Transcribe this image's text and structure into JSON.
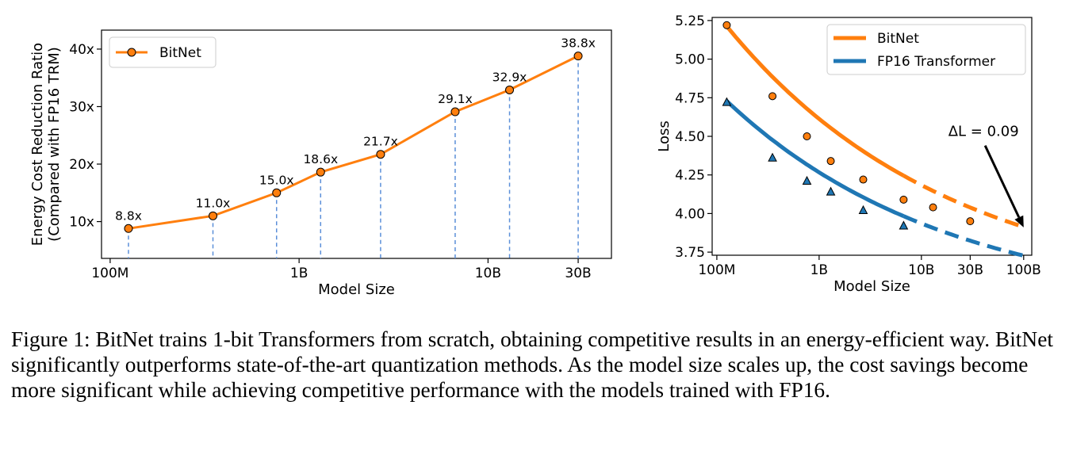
{
  "caption": "Figure 1: BitNet trains 1-bit Transformers from scratch, obtaining competitive results in an energy-efficient way. BitNet significantly outperforms state-of-the-art quantization methods. As the model size scales up, the cost savings become more significant while achieving competitive performance with the models trained with FP16.",
  "chart_data": [
    {
      "type": "line",
      "title": "",
      "xlabel": "Model Size",
      "ylabel": "Energy Cost Reduction Ratio",
      "ylabel2": "(Compared with FP16 TRM)",
      "xscale": "log",
      "xlim": [
        90000000,
        45000000000
      ],
      "ylim": [
        3.6,
        43.3
      ],
      "xticks": [
        {
          "value": 100000000,
          "label": "100M"
        },
        {
          "value": 1000000000,
          "label": "1B"
        },
        {
          "value": 10000000000,
          "label": "10B"
        },
        {
          "value": 30000000000,
          "label": "30B"
        }
      ],
      "yticks": [
        {
          "value": 10,
          "label": "10x"
        },
        {
          "value": 20,
          "label": "20x"
        },
        {
          "value": 30,
          "label": "30x"
        },
        {
          "value": 40,
          "label": "40x"
        }
      ],
      "legend": "top-left",
      "grid": false,
      "drop_lines": true,
      "series": [
        {
          "name": "BitNet",
          "color": "#ff7f0e",
          "marker": "circle",
          "points": [
            {
              "x": 125000000,
              "y": 8.8,
              "label": "8.8x"
            },
            {
              "x": 350000000,
              "y": 11.0,
              "label": "11.0x"
            },
            {
              "x": 760000000,
              "y": 15.0,
              "label": "15.0x"
            },
            {
              "x": 1300000000,
              "y": 18.6,
              "label": "18.6x"
            },
            {
              "x": 2700000000,
              "y": 21.7,
              "label": "21.7x"
            },
            {
              "x": 6700000000,
              "y": 29.1,
              "label": "29.1x"
            },
            {
              "x": 13000000000,
              "y": 32.9,
              "label": "32.9x"
            },
            {
              "x": 30000000000,
              "y": 38.8,
              "label": "38.8x"
            }
          ]
        }
      ]
    },
    {
      "type": "line",
      "title": "",
      "xlabel": "Model Size",
      "ylabel": "Loss",
      "xscale": "log",
      "xlim": [
        90000000,
        120000000000
      ],
      "ylim": [
        3.73,
        5.27
      ],
      "xticks": [
        {
          "value": 100000000,
          "label": "100M"
        },
        {
          "value": 1000000000,
          "label": "1B"
        },
        {
          "value": 10000000000,
          "label": "10B"
        },
        {
          "value": 30000000000,
          "label": "30B"
        },
        {
          "value": 100000000000,
          "label": "100B"
        }
      ],
      "yticks": [
        {
          "value": 3.75,
          "label": "3.75"
        },
        {
          "value": 4.0,
          "label": "4.00"
        },
        {
          "value": 4.25,
          "label": "4.25"
        },
        {
          "value": 4.5,
          "label": "4.50"
        },
        {
          "value": 4.75,
          "label": "4.75"
        },
        {
          "value": 5.0,
          "label": "5.00"
        },
        {
          "value": 5.25,
          "label": "5.25"
        }
      ],
      "legend": "top-right",
      "grid": false,
      "annotation": {
        "text": "ΔL = 0.09",
        "x_from": 42000000000,
        "y_from": 4.44,
        "x_to": 100000000000,
        "y_to": 3.91
      },
      "series": [
        {
          "name": "BitNet",
          "color": "#ff7f0e",
          "marker": "circle",
          "fit": {
            "a": 3.45,
            "b": 1.7633,
            "c": 0.2,
            "x0": 125000000
          },
          "solid_until": 6700000000,
          "points": [
            {
              "x": 125000000,
              "y": 5.22
            },
            {
              "x": 350000000,
              "y": 4.76
            },
            {
              "x": 760000000,
              "y": 4.5
            },
            {
              "x": 1300000000,
              "y": 4.34
            },
            {
              "x": 2700000000,
              "y": 4.22
            },
            {
              "x": 6700000000,
              "y": 4.09
            },
            {
              "x": 13000000000,
              "y": 4.04
            },
            {
              "x": 30000000000,
              "y": 3.95
            }
          ]
        },
        {
          "name": "FP16 Transformer",
          "color": "#1f77b4",
          "marker": "triangle",
          "fit": {
            "a": 3.37,
            "b": 1.3591,
            "c": 0.2,
            "x0": 125000000
          },
          "solid_until": 6700000000,
          "points": [
            {
              "x": 125000000,
              "y": 4.72
            },
            {
              "x": 350000000,
              "y": 4.36
            },
            {
              "x": 760000000,
              "y": 4.21
            },
            {
              "x": 1300000000,
              "y": 4.14
            },
            {
              "x": 2700000000,
              "y": 4.02
            },
            {
              "x": 6700000000,
              "y": 3.92
            }
          ]
        }
      ]
    }
  ]
}
